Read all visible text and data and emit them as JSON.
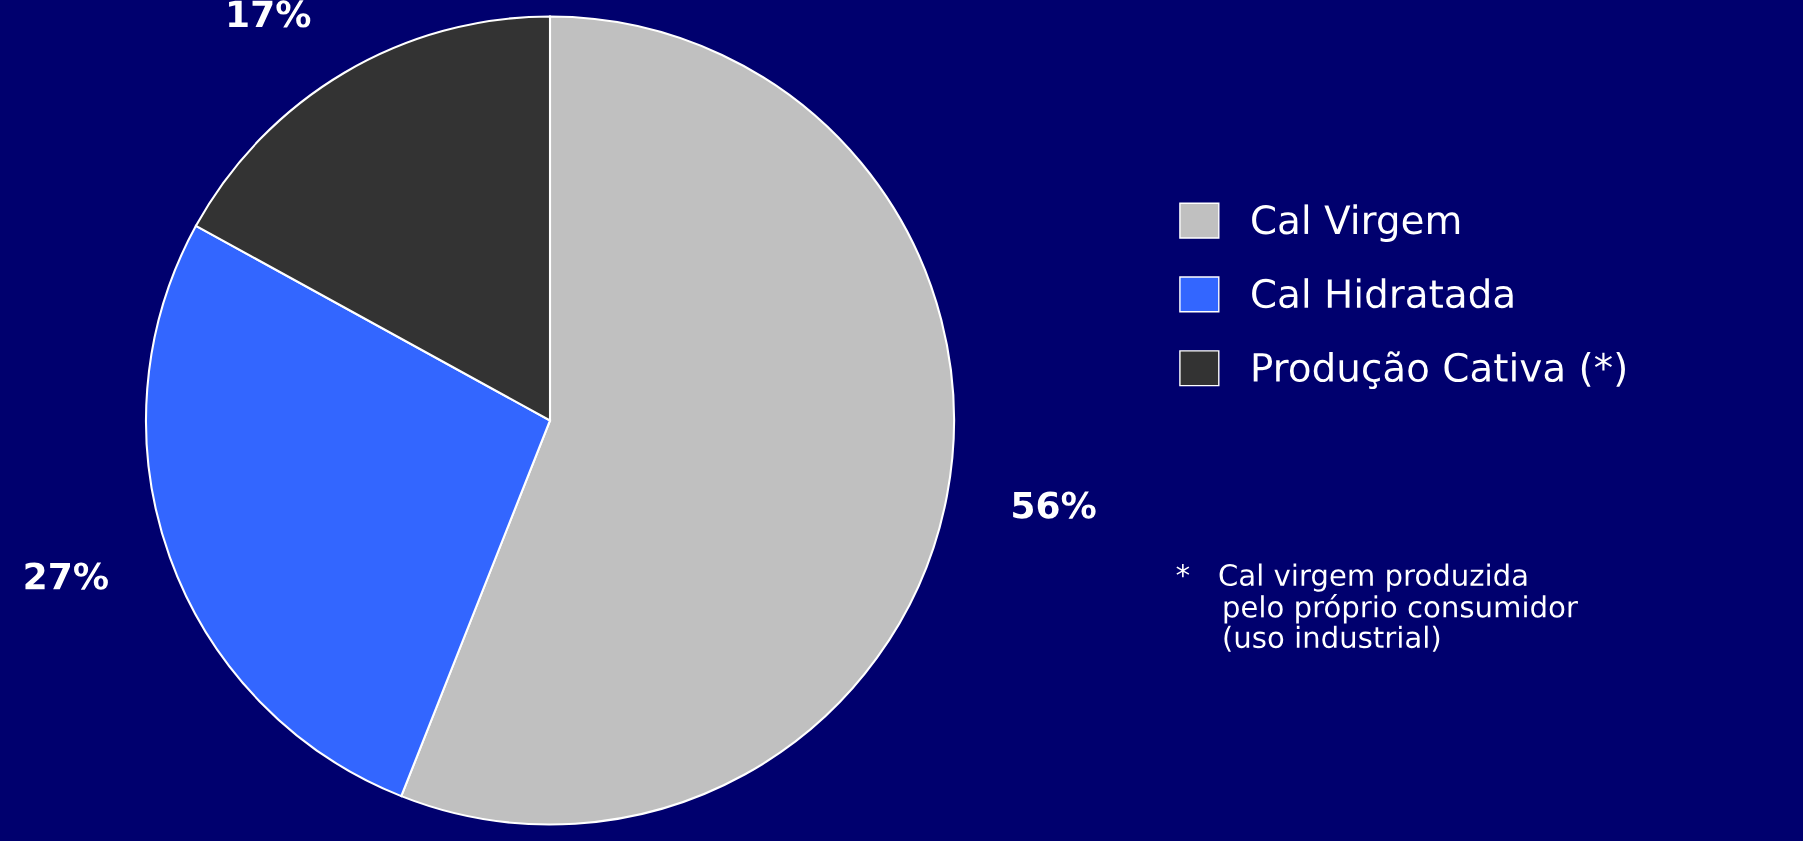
{
  "chart_data": {
    "type": "pie",
    "categories": [
      "Cal Virgem",
      "Cal Hidratada",
      "Produção Cativa (*)"
    ],
    "values": [
      56,
      27,
      17
    ],
    "colors": [
      "#c0c0c0",
      "#3366ff",
      "#333333"
    ],
    "value_labels": [
      "56%",
      "27%",
      "17%"
    ],
    "legend": "right",
    "annotations": [
      "*   Cal virgem produzida\n     pelo próprio consumidor\n     (uso industrial)"
    ]
  }
}
